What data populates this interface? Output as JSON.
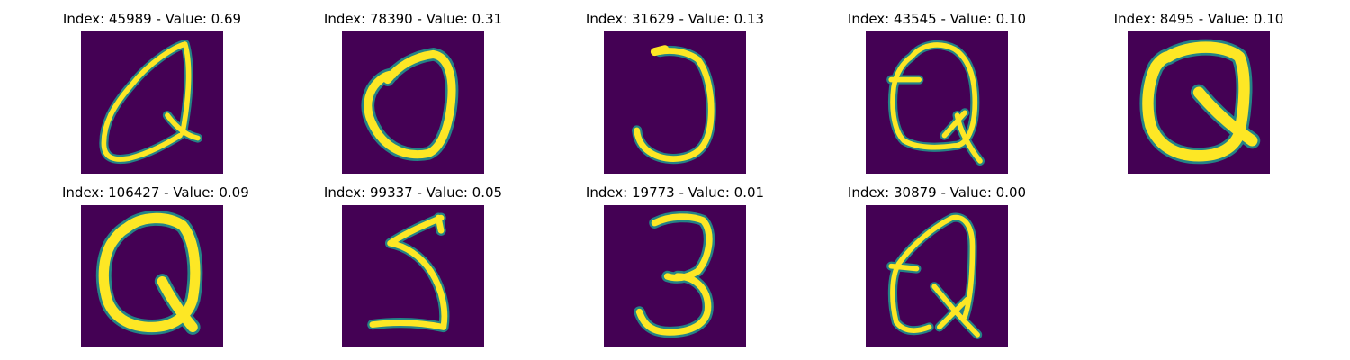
{
  "figure": {
    "panels": [
      {
        "title": "Index: 45989 - Value: 0.69",
        "glyph": "tilted Q"
      },
      {
        "title": "Index: 78390 - Value: 0.31",
        "glyph": "O"
      },
      {
        "title": "Index: 31629 - Value: 0.13",
        "glyph": "J"
      },
      {
        "title": "Index: 43545 - Value: 0.10",
        "glyph": "Q with bar"
      },
      {
        "title": "Index: 8495 - Value: 0.10",
        "glyph": "bold Q"
      },
      {
        "title": "Index: 106427 - Value: 0.09",
        "glyph": "bold Q"
      },
      {
        "title": "Index: 99337 - Value: 0.05",
        "glyph": "5"
      },
      {
        "title": "Index: 19773 - Value: 0.01",
        "glyph": "3"
      },
      {
        "title": "Index: 30879 - Value: 0.00",
        "glyph": "Q with bar"
      }
    ],
    "colors": {
      "background": "#440154",
      "mid": "#21918c",
      "light": "#5ec962",
      "stroke": "#fde725"
    }
  }
}
